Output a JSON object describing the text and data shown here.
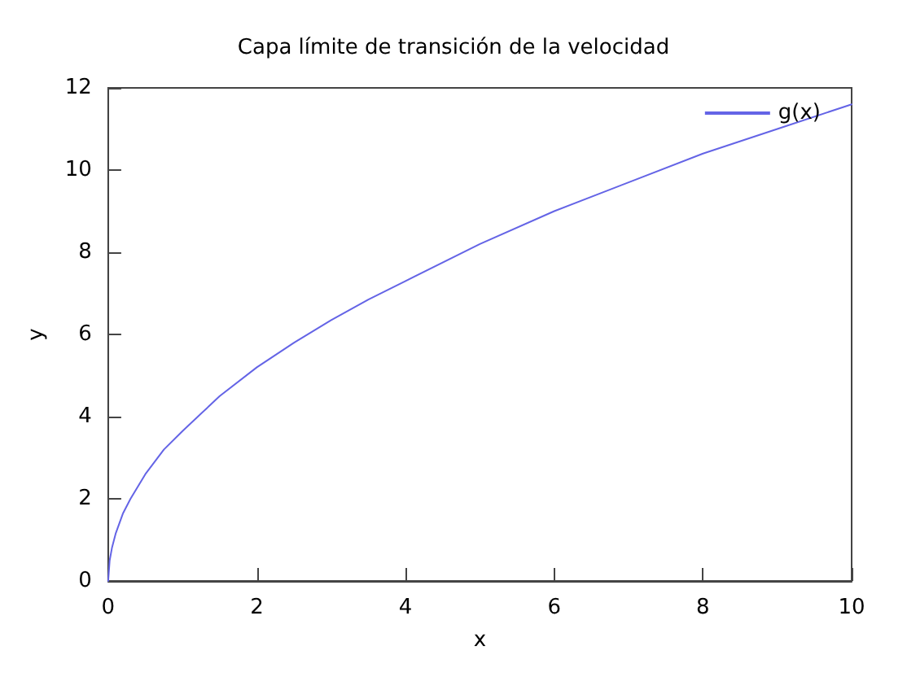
{
  "chart_data": {
    "type": "line",
    "title": "Capa límite de transición de la velocidad",
    "xlabel": "x",
    "ylabel": "y",
    "series": [
      {
        "name": "g(x)",
        "color": "#6464e6",
        "x": [
          0,
          0.02,
          0.05,
          0.1,
          0.2,
          0.3,
          0.5,
          0.75,
          1,
          1.5,
          2,
          2.5,
          3,
          3.5,
          4,
          5,
          6,
          7,
          8,
          9,
          10
        ],
        "values": [
          0,
          0.5,
          0.8,
          1.15,
          1.65,
          2.0,
          2.6,
          3.2,
          3.65,
          4.5,
          5.2,
          5.8,
          6.35,
          6.85,
          7.3,
          8.2,
          9.0,
          9.7,
          10.4,
          11.0,
          11.6
        ]
      }
    ],
    "xlim": [
      0,
      10
    ],
    "xticks": [
      0,
      2,
      4,
      6,
      8,
      10
    ],
    "ylim": [
      0,
      12
    ],
    "yticks": [
      0,
      2,
      4,
      6,
      8,
      10,
      12
    ],
    "grid": false,
    "legend": "top right",
    "marker": "none",
    "line_style": "solid"
  }
}
